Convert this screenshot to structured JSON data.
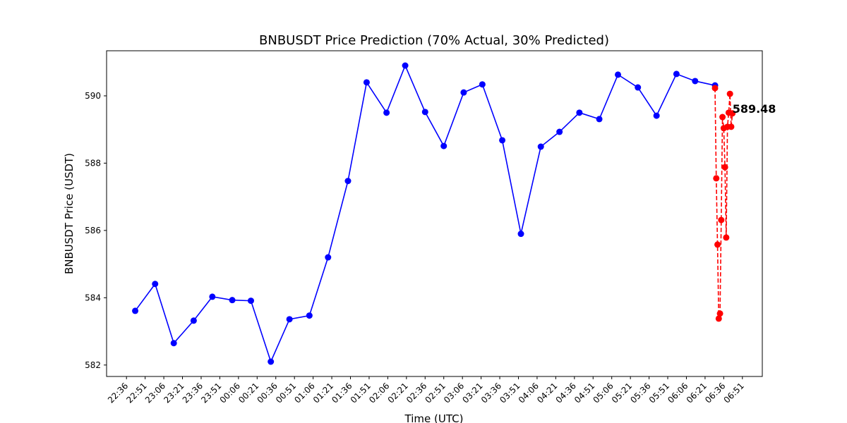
{
  "chart_data": {
    "type": "line",
    "title": "BNBUSDT Price Prediction (70% Actual, 30% Predicted)",
    "x_label": "Time (UTC)",
    "y_label": "BNBUSDT Price (USDT)",
    "series": [
      {
        "name": "Actual",
        "color": "blue",
        "linestyle": "solid",
        "x": [
          "22:43",
          "22:59",
          "23:14",
          "23:30",
          "23:45",
          "00:01",
          "00:16",
          "00:32",
          "00:47",
          "01:03",
          "01:18",
          "01:34",
          "01:49",
          "02:05",
          "02:20",
          "02:36",
          "02:51",
          "03:07",
          "03:22",
          "03:38",
          "03:53",
          "04:09",
          "04:24",
          "04:40",
          "04:56",
          "05:11",
          "05:27",
          "05:42",
          "05:58",
          "06:13",
          "06:29"
        ],
        "values": [
          583.61,
          584.41,
          582.65,
          583.32,
          584.03,
          583.93,
          583.91,
          582.1,
          583.36,
          583.47,
          585.2,
          587.47,
          590.4,
          589.5,
          590.9,
          589.52,
          588.51,
          590.1,
          590.34,
          588.68,
          585.9,
          588.49,
          588.93,
          589.5,
          589.31,
          590.63,
          590.25,
          589.41,
          590.65,
          590.44,
          590.31
        ]
      },
      {
        "name": "Predicted",
        "color": "red",
        "linestyle": "dashed",
        "x": [
          "06:29",
          "06:30",
          "06:31",
          "06:32",
          "06:33",
          "06:34",
          "06:35",
          "06:36",
          "06:37",
          "06:38",
          "06:39",
          "06:40",
          "06:41",
          "06:42",
          "06:43"
        ],
        "values": [
          590.23,
          587.55,
          585.58,
          583.38,
          583.53,
          586.31,
          589.37,
          589.04,
          587.88,
          585.79,
          589.08,
          589.5,
          590.06,
          589.08,
          589.48
        ],
        "last_label": true
      }
    ],
    "xlim": [
      "22:20",
      "07:07"
    ],
    "xticks": [
      "22:36",
      "22:51",
      "23:06",
      "23:21",
      "23:36",
      "23:51",
      "00:06",
      "00:21",
      "00:36",
      "00:51",
      "01:06",
      "01:21",
      "01:36",
      "01:51",
      "02:06",
      "02:21",
      "02:36",
      "02:51",
      "03:06",
      "03:21",
      "03:36",
      "03:51",
      "04:06",
      "04:21",
      "04:36",
      "04:51",
      "05:06",
      "05:21",
      "05:36",
      "05:51",
      "06:06",
      "06:21",
      "06:36",
      "06:51"
    ],
    "ylim": [
      581.66,
      591.34
    ],
    "yticks": [
      582,
      584,
      586,
      588,
      590
    ],
    "grid": false
  }
}
